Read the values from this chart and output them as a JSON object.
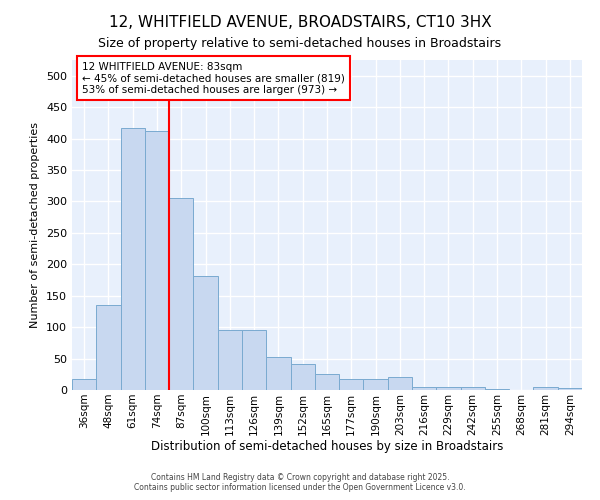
{
  "title_line1": "12, WHITFIELD AVENUE, BROADSTAIRS, CT10 3HX",
  "title_line2": "Size of property relative to semi-detached houses in Broadstairs",
  "xlabel": "Distribution of semi-detached houses by size in Broadstairs",
  "ylabel": "Number of semi-detached properties",
  "categories": [
    "36sqm",
    "48sqm",
    "61sqm",
    "74sqm",
    "87sqm",
    "100sqm",
    "113sqm",
    "126sqm",
    "139sqm",
    "152sqm",
    "165sqm",
    "177sqm",
    "190sqm",
    "203sqm",
    "216sqm",
    "229sqm",
    "242sqm",
    "255sqm",
    "268sqm",
    "281sqm",
    "294sqm"
  ],
  "values": [
    17,
    135,
    417,
    412,
    305,
    182,
    95,
    95,
    53,
    42,
    25,
    17,
    18,
    20,
    4,
    5,
    5,
    2,
    0,
    5,
    3
  ],
  "bar_color": "#c8d8f0",
  "bar_edge_color": "#7aaad0",
  "property_line_color": "red",
  "property_line_x": 4.5,
  "annotation_text": "12 WHITFIELD AVENUE: 83sqm\n← 45% of semi-detached houses are smaller (819)\n53% of semi-detached houses are larger (973) →",
  "annotation_box_color": "white",
  "annotation_box_edge_color": "red",
  "footer_text": "Contains HM Land Registry data © Crown copyright and database right 2025.\nContains public sector information licensed under the Open Government Licence v3.0.",
  "ylim": [
    0,
    525
  ],
  "yticks": [
    0,
    50,
    100,
    150,
    200,
    250,
    300,
    350,
    400,
    450,
    500
  ],
  "plot_bg_color": "#e8f0fc",
  "fig_bg_color": "#ffffff",
  "grid_color": "#ffffff",
  "figsize": [
    6.0,
    5.0
  ],
  "dpi": 100
}
